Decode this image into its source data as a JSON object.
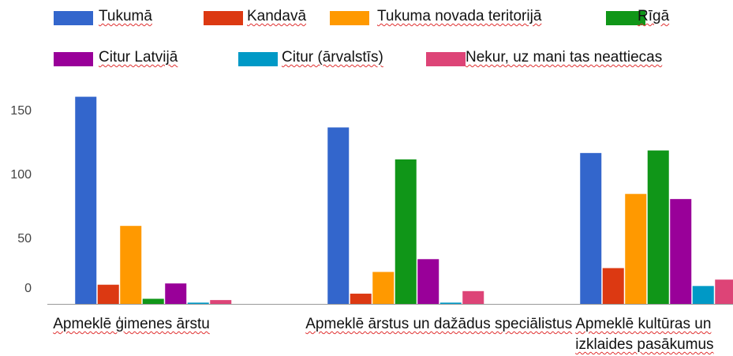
{
  "chart_data": {
    "type": "bar",
    "categories": [
      "Apmeklē ģimenes ārstu",
      "Apmeklē ārstus un dažādus speciālistus",
      "Apmeklē kultūras un izklaides pasākumus"
    ],
    "series": [
      {
        "name": "Tukumā",
        "color": "#3366cc",
        "values": [
          162,
          138,
          118
        ]
      },
      {
        "name": "Kandavā",
        "color": "#dc3912",
        "values": [
          15,
          8,
          28
        ]
      },
      {
        "name": "Tukuma novada teritorijā",
        "color": "#ff9900",
        "values": [
          61,
          25,
          86
        ]
      },
      {
        "name": "Rīgā",
        "color": "#109618",
        "values": [
          4,
          113,
          120
        ]
      },
      {
        "name": "Citur Latvijā",
        "color": "#990099",
        "values": [
          16,
          35,
          82
        ]
      },
      {
        "name": "Citur (ārvalstīs)",
        "color": "#0099c6",
        "values": [
          1,
          1,
          14
        ]
      },
      {
        "name": "Nekur, uz mani tas neattiecas",
        "color": "#dd4477",
        "values": [
          3,
          10,
          19
        ]
      }
    ],
    "ylim": [
      0,
      150
    ],
    "yticks": [
      0,
      50,
      100,
      150
    ],
    "legend": "top"
  }
}
